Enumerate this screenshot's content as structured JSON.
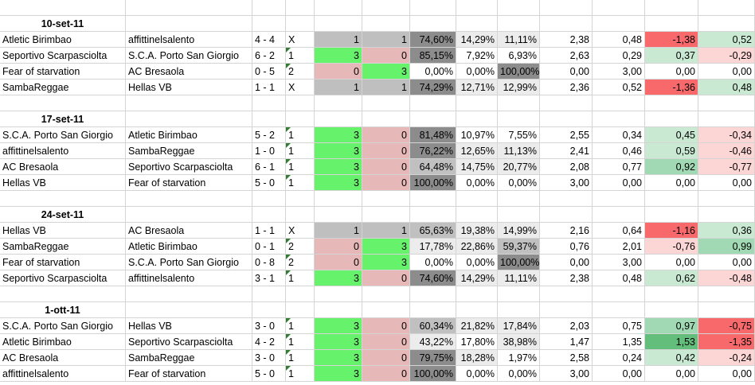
{
  "colors": {
    "grey_draw": "#bfbfbf",
    "green_win": "#66f26a",
    "pink_loss": "#e6b8b7",
    "dark_grey": "#8c8c8c",
    "mid_grey": "#c0c0c0",
    "light_grey": "#ececec",
    "red_strong": "#f8696b",
    "red_light": "#fcd5d5",
    "green_light": "#c9e9d3",
    "green_mid": "#a0d9b3",
    "green_strong": "#63be7b",
    "triangle": "#2e7d32"
  },
  "rounds": [
    {
      "date": "10-set-11",
      "matches": [
        {
          "home": "Atletic Birimbao",
          "away": "affittinelsalento",
          "score": "4 - 4",
          "sign": "X",
          "h": "1",
          "a": "1",
          "p1": "74,60%",
          "px": "14,29%",
          "p2": "11,11%",
          "e1": "2,38",
          "e2": "0,48",
          "d1": "-1,38",
          "d2": "0,52",
          "bh": "grey_draw",
          "ba": "grey_draw",
          "c1": "dark_grey",
          "cx": "light_grey",
          "c2": "light_grey",
          "cd1": "red_strong",
          "cd2": "green_light",
          "tri": false
        },
        {
          "home": "Seportivo Scarpasciolta",
          "away": "S.C.A. Porto San Giorgio",
          "score": "6 - 2",
          "sign": "1",
          "h": "3",
          "a": "0",
          "p1": "85,15%",
          "px": "7,92%",
          "p2": "6,93%",
          "e1": "2,63",
          "e2": "0,29",
          "d1": "0,37",
          "d2": "-0,29",
          "bh": "green_win",
          "ba": "pink_loss",
          "c1": "dark_grey",
          "cx": "",
          "c2": "",
          "cd1": "green_light",
          "cd2": "red_light",
          "tri": true
        },
        {
          "home": "Fear of starvation",
          "away": "AC Bresaola",
          "score": "0 - 5",
          "sign": "2",
          "h": "0",
          "a": "3",
          "p1": "0,00%",
          "px": "0,00%",
          "p2": "100,00%",
          "e1": "0,00",
          "e2": "3,00",
          "d1": "0,00",
          "d2": "0,00",
          "bh": "pink_loss",
          "ba": "green_win",
          "c1": "",
          "cx": "",
          "c2": "dark_grey",
          "cd1": "",
          "cd2": "",
          "tri": true
        },
        {
          "home": "SambaReggae",
          "away": "Hellas VB",
          "score": "1 - 1",
          "sign": "X",
          "h": "1",
          "a": "1",
          "p1": "74,29%",
          "px": "12,71%",
          "p2": "12,99%",
          "e1": "2,36",
          "e2": "0,52",
          "d1": "-1,36",
          "d2": "0,48",
          "bh": "grey_draw",
          "ba": "grey_draw",
          "c1": "dark_grey",
          "cx": "light_grey",
          "c2": "light_grey",
          "cd1": "red_strong",
          "cd2": "green_light",
          "tri": false
        }
      ]
    },
    {
      "date": "17-set-11",
      "matches": [
        {
          "home": "S.C.A. Porto San Giorgio",
          "away": "Atletic Birimbao",
          "score": "5 - 2",
          "sign": "1",
          "h": "3",
          "a": "0",
          "p1": "81,48%",
          "px": "10,97%",
          "p2": "7,55%",
          "e1": "2,55",
          "e2": "0,34",
          "d1": "0,45",
          "d2": "-0,34",
          "bh": "green_win",
          "ba": "pink_loss",
          "c1": "dark_grey",
          "cx": "",
          "c2": "",
          "cd1": "green_light",
          "cd2": "red_light",
          "tri": true
        },
        {
          "home": "affittinelsalento",
          "away": "SambaReggae",
          "score": "1 - 0",
          "sign": "1",
          "h": "3",
          "a": "0",
          "p1": "76,22%",
          "px": "12,65%",
          "p2": "11,13%",
          "e1": "2,41",
          "e2": "0,46",
          "d1": "0,59",
          "d2": "-0,46",
          "bh": "green_win",
          "ba": "pink_loss",
          "c1": "dark_grey",
          "cx": "light_grey",
          "c2": "light_grey",
          "cd1": "green_light",
          "cd2": "red_light",
          "tri": true
        },
        {
          "home": "AC Bresaola",
          "away": "Seportivo Scarpasciolta",
          "score": "6 - 1",
          "sign": "1",
          "h": "3",
          "a": "0",
          "p1": "64,48%",
          "px": "14,75%",
          "p2": "20,77%",
          "e1": "2,08",
          "e2": "0,77",
          "d1": "0,92",
          "d2": "-0,77",
          "bh": "green_win",
          "ba": "pink_loss",
          "c1": "mid_grey",
          "cx": "light_grey",
          "c2": "light_grey",
          "cd1": "green_mid",
          "cd2": "red_light",
          "tri": true
        },
        {
          "home": "Hellas VB",
          "away": "Fear of starvation",
          "score": "5 - 0",
          "sign": "1",
          "h": "3",
          "a": "0",
          "p1": "100,00%",
          "px": "0,00%",
          "p2": "0,00%",
          "e1": "3,00",
          "e2": "0,00",
          "d1": "0,00",
          "d2": "0,00",
          "bh": "green_win",
          "ba": "pink_loss",
          "c1": "dark_grey",
          "cx": "",
          "c2": "",
          "cd1": "",
          "cd2": "",
          "tri": true
        }
      ]
    },
    {
      "date": "24-set-11",
      "matches": [
        {
          "home": "Hellas VB",
          "away": "AC Bresaola",
          "score": "1 - 1",
          "sign": "X",
          "h": "1",
          "a": "1",
          "p1": "65,63%",
          "px": "19,38%",
          "p2": "14,99%",
          "e1": "2,16",
          "e2": "0,64",
          "d1": "-1,16",
          "d2": "0,36",
          "bh": "grey_draw",
          "ba": "grey_draw",
          "c1": "mid_grey",
          "cx": "light_grey",
          "c2": "light_grey",
          "cd1": "red_strong",
          "cd2": "green_light",
          "tri": false
        },
        {
          "home": "SambaReggae",
          "away": "Atletic Birimbao",
          "score": "0 - 1",
          "sign": "2",
          "h": "0",
          "a": "3",
          "p1": "17,78%",
          "px": "22,86%",
          "p2": "59,37%",
          "e1": "0,76",
          "e2": "2,01",
          "d1": "-0,76",
          "d2": "0,99",
          "bh": "pink_loss",
          "ba": "green_win",
          "c1": "light_grey",
          "cx": "light_grey",
          "c2": "mid_grey",
          "cd1": "red_light",
          "cd2": "green_mid",
          "tri": true
        },
        {
          "home": "Fear of starvation",
          "away": "S.C.A. Porto San Giorgio",
          "score": "0 - 8",
          "sign": "2",
          "h": "0",
          "a": "3",
          "p1": "0,00%",
          "px": "0,00%",
          "p2": "100,00%",
          "e1": "0,00",
          "e2": "3,00",
          "d1": "0,00",
          "d2": "0,00",
          "bh": "pink_loss",
          "ba": "green_win",
          "c1": "",
          "cx": "",
          "c2": "dark_grey",
          "cd1": "",
          "cd2": "",
          "tri": true
        },
        {
          "home": "Seportivo Scarpasciolta",
          "away": "affittinelsalento",
          "score": "3 - 1",
          "sign": "1",
          "h": "3",
          "a": "0",
          "p1": "74,60%",
          "px": "14,29%",
          "p2": "11,11%",
          "e1": "2,38",
          "e2": "0,48",
          "d1": "0,62",
          "d2": "-0,48",
          "bh": "green_win",
          "ba": "pink_loss",
          "c1": "dark_grey",
          "cx": "light_grey",
          "c2": "light_grey",
          "cd1": "green_light",
          "cd2": "red_light",
          "tri": true
        }
      ]
    },
    {
      "date": "1-ott-11",
      "matches": [
        {
          "home": "S.C.A. Porto San Giorgio",
          "away": "Hellas VB",
          "score": "3 - 0",
          "sign": "1",
          "h": "3",
          "a": "0",
          "p1": "60,34%",
          "px": "21,82%",
          "p2": "17,84%",
          "e1": "2,03",
          "e2": "0,75",
          "d1": "0,97",
          "d2": "-0,75",
          "bh": "green_win",
          "ba": "pink_loss",
          "c1": "mid_grey",
          "cx": "light_grey",
          "c2": "light_grey",
          "cd1": "green_mid",
          "cd2": "red_strong",
          "tri": true
        },
        {
          "home": "Atletic Birimbao",
          "away": "Seportivo Scarpasciolta",
          "score": "4 - 2",
          "sign": "1",
          "h": "3",
          "a": "0",
          "p1": "43,22%",
          "px": "17,80%",
          "p2": "38,98%",
          "e1": "1,47",
          "e2": "1,35",
          "d1": "1,53",
          "d2": "-1,35",
          "bh": "green_win",
          "ba": "pink_loss",
          "c1": "light_grey",
          "cx": "",
          "c2": "light_grey",
          "cd1": "green_strong",
          "cd2": "red_strong",
          "tri": true
        },
        {
          "home": "AC Bresaola",
          "away": "SambaReggae",
          "score": "3 - 0",
          "sign": "1",
          "h": "3",
          "a": "0",
          "p1": "79,75%",
          "px": "18,28%",
          "p2": "1,97%",
          "e1": "2,58",
          "e2": "0,24",
          "d1": "0,42",
          "d2": "-0,24",
          "bh": "green_win",
          "ba": "pink_loss",
          "c1": "dark_grey",
          "cx": "light_grey",
          "c2": "",
          "cd1": "green_light",
          "cd2": "red_light",
          "tri": true
        },
        {
          "home": "affittinelsalento",
          "away": "Fear of starvation",
          "score": "5 - 0",
          "sign": "1",
          "h": "3",
          "a": "0",
          "p1": "100,00%",
          "px": "0,00%",
          "p2": "0,00%",
          "e1": "3,00",
          "e2": "0,00",
          "d1": "0,00",
          "d2": "0,00",
          "bh": "green_win",
          "ba": "pink_loss",
          "c1": "dark_grey",
          "cx": "",
          "c2": "",
          "cd1": "",
          "cd2": "",
          "tri": true
        }
      ]
    }
  ]
}
